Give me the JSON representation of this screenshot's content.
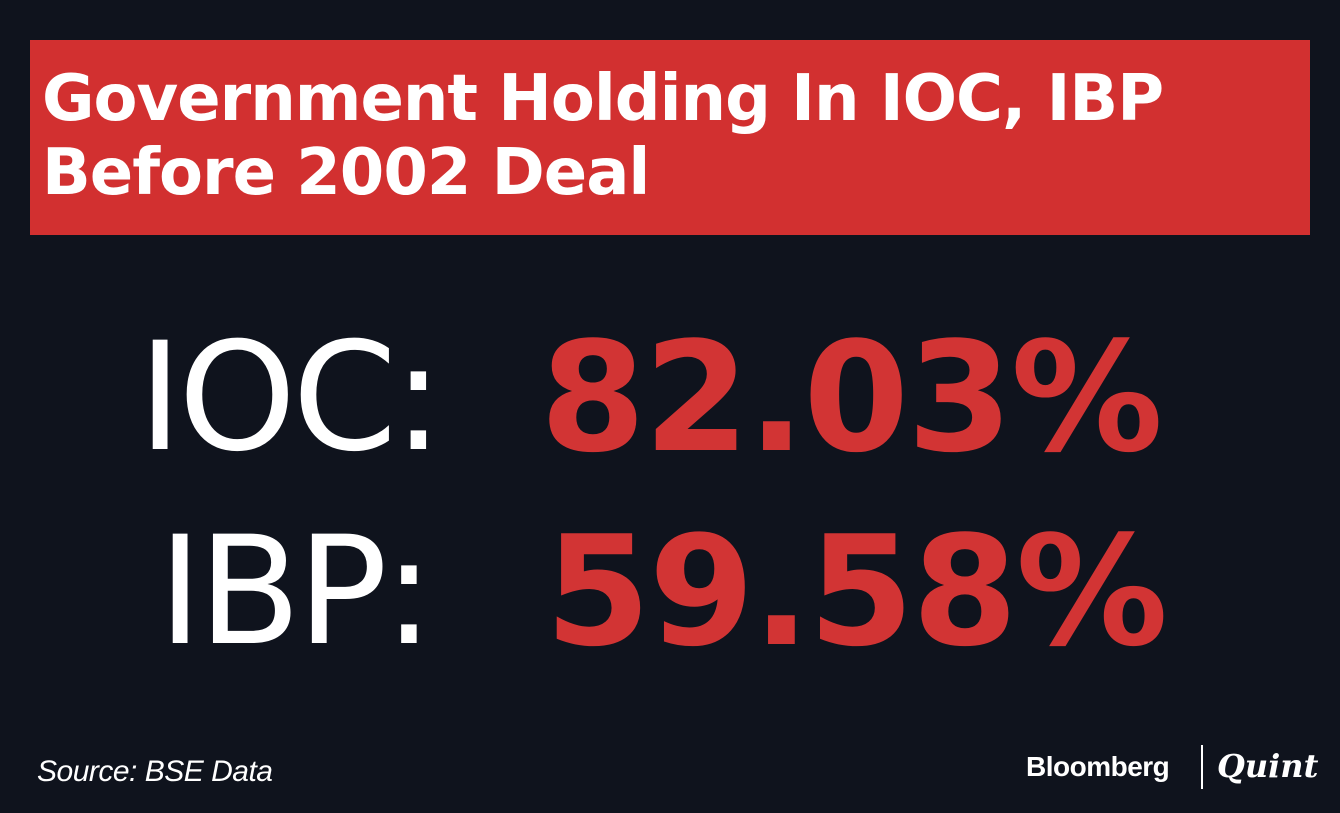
{
  "header": {
    "title_line1": "Government Holding In IOC, IBP",
    "title_line2": "Before 2002 Deal"
  },
  "stats": [
    {
      "label": "IOC:",
      "value": "82.03%"
    },
    {
      "label": "IBP:",
      "value": "59.58%"
    }
  ],
  "footer": {
    "source": "Source: BSE Data",
    "brand_primary": "Bloomberg",
    "brand_secondary": "Quint"
  },
  "colors": {
    "background": "#0f131d",
    "accent_red": "#d23030",
    "text_white": "#ffffff"
  }
}
